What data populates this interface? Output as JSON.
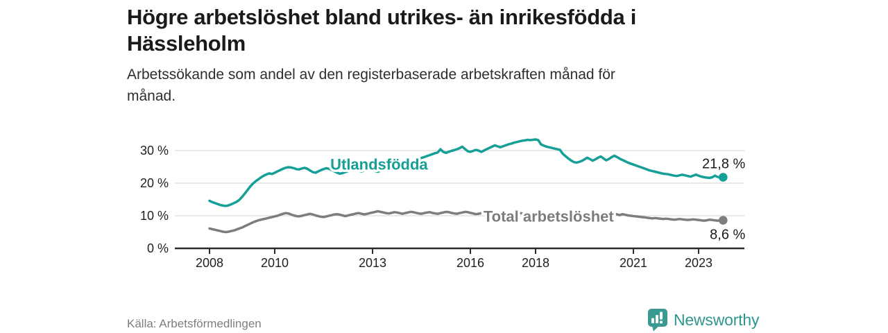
{
  "header": {
    "title_line1": "Högre arbetslöshet bland utrikes- än inrikesfödda i",
    "title_line2": "Hässleholm",
    "subtitle_line1": "Arbetssökande som andel av den registerbaserade arbetskraften månad för",
    "subtitle_line2": "månad."
  },
  "footer": {
    "source": "Källa: Arbetsförmedlingen",
    "brand": "Newsworthy"
  },
  "colors": {
    "accent_teal": "#169f97",
    "series_gray": "#7d7d7d",
    "brand_teal": "#2d968e",
    "gridline": "#dcdcdc",
    "axis": "#2b2b2b",
    "text_dark": "#1a1a1a"
  },
  "chart_data": {
    "type": "line",
    "title": "Högre arbetslöshet bland utrikes- än inrikesfödda i Hässleholm",
    "subtitle": "Arbetssökande som andel av den registerbaserade arbetskraften månad för månad.",
    "source": "Källa: Arbetsförmedlingen",
    "x_start_year": 2008,
    "x_step_months": 1,
    "x_tick_years": [
      2008,
      2010,
      2013,
      2016,
      2018,
      2021,
      2023
    ],
    "x_tick_labels": [
      "2008",
      "2010",
      "2013",
      "2016",
      "2018",
      "2021",
      "2023"
    ],
    "y_ticks": [
      0,
      10,
      20,
      30
    ],
    "y_tick_labels": [
      "0 %",
      "10 %",
      "20 %",
      "30 %"
    ],
    "ylim": [
      0,
      36
    ],
    "xlim": [
      2006.9,
      2024.4
    ],
    "grid": "horizontal",
    "legend_position": "inline-labels",
    "series": [
      {
        "id": "utlandsfodda",
        "name": "Utlandsfödda",
        "color": "#169f97",
        "end_label": "21,8 %",
        "end_value": 21.8,
        "end_label_pos": "above",
        "label_x": 2013.2,
        "label_y": 25.8,
        "values": [
          14.6,
          14.2,
          13.9,
          13.6,
          13.3,
          13.1,
          13.0,
          13.2,
          13.5,
          13.9,
          14.3,
          14.9,
          15.8,
          16.8,
          17.9,
          19.0,
          19.9,
          20.6,
          21.2,
          21.8,
          22.3,
          22.7,
          23.0,
          22.8,
          23.2,
          23.6,
          24.0,
          24.4,
          24.7,
          24.9,
          24.8,
          24.6,
          24.3,
          24.2,
          24.5,
          24.7,
          24.4,
          23.9,
          23.4,
          23.2,
          23.6,
          24.0,
          24.3,
          24.6,
          24.4,
          24.0,
          23.6,
          23.2,
          22.9,
          23.1,
          23.4,
          23.7,
          24.0,
          24.2,
          24.0,
          23.8,
          23.6,
          23.9,
          24.1,
          24.3,
          24.0,
          23.7,
          23.5,
          23.8,
          24.1,
          24.3,
          24.6,
          24.4,
          24.7,
          25.0,
          25.3,
          25.6,
          25.9,
          26.2,
          26.5,
          26.8,
          27.1,
          27.4,
          27.7,
          28.0,
          28.3,
          28.6,
          28.9,
          29.2,
          29.4,
          30.4,
          29.6,
          29.3,
          29.6,
          29.9,
          30.1,
          30.4,
          30.7,
          31.2,
          30.5,
          29.8,
          29.6,
          29.9,
          30.2,
          30.0,
          29.6,
          30.0,
          30.4,
          30.8,
          31.2,
          31.6,
          31.3,
          31.0,
          31.3,
          31.6,
          31.9,
          32.1,
          32.4,
          32.6,
          32.8,
          33.0,
          33.1,
          33.3,
          33.2,
          33.3,
          33.4,
          33.2,
          31.9,
          31.5,
          31.2,
          31.0,
          30.8,
          30.6,
          30.4,
          30.2,
          29.0,
          28.3,
          27.6,
          27.0,
          26.5,
          26.3,
          26.5,
          26.8,
          27.3,
          27.8,
          27.4,
          26.9,
          27.3,
          27.8,
          28.2,
          27.6,
          27.0,
          27.4,
          28.0,
          28.4,
          28.0,
          27.5,
          27.1,
          26.7,
          26.3,
          26.0,
          25.7,
          25.4,
          25.1,
          24.8,
          24.5,
          24.2,
          23.9,
          23.7,
          23.5,
          23.3,
          23.1,
          22.9,
          22.8,
          22.7,
          22.5,
          22.3,
          22.2,
          22.4,
          22.6,
          22.4,
          22.2,
          22.0,
          22.3,
          22.6,
          22.3,
          22.0,
          21.8,
          21.7,
          21.6,
          21.8,
          22.3,
          21.9,
          21.7,
          21.8
        ]
      },
      {
        "id": "total",
        "name": "Total arbetslöshet",
        "color": "#7d7d7d",
        "end_label": "8,6 %",
        "end_value": 8.6,
        "end_label_pos": "below",
        "label_x": 2018.4,
        "label_y": 9.9,
        "values": [
          6.1,
          5.9,
          5.7,
          5.5,
          5.3,
          5.1,
          5.0,
          5.1,
          5.3,
          5.5,
          5.8,
          6.1,
          6.4,
          6.8,
          7.2,
          7.6,
          8.0,
          8.3,
          8.6,
          8.8,
          9.0,
          9.2,
          9.4,
          9.6,
          9.8,
          10.0,
          10.3,
          10.6,
          10.8,
          10.7,
          10.4,
          10.1,
          9.9,
          9.8,
          10.0,
          10.2,
          10.4,
          10.6,
          10.4,
          10.1,
          9.9,
          9.7,
          9.6,
          9.8,
          10.0,
          10.2,
          10.4,
          10.5,
          10.3,
          10.1,
          9.9,
          10.1,
          10.3,
          10.5,
          10.7,
          10.8,
          10.6,
          10.4,
          10.6,
          10.8,
          11.0,
          11.2,
          11.4,
          11.2,
          11.0,
          10.8,
          10.7,
          10.9,
          11.1,
          11.0,
          10.8,
          10.6,
          10.8,
          11.0,
          11.2,
          11.1,
          10.9,
          10.7,
          10.6,
          10.8,
          11.0,
          11.1,
          10.9,
          10.7,
          10.6,
          10.8,
          11.0,
          11.2,
          11.1,
          10.9,
          10.7,
          10.6,
          10.8,
          11.0,
          11.2,
          11.1,
          10.9,
          10.7,
          10.5,
          10.6,
          10.8,
          11.0,
          11.1,
          10.9,
          10.7,
          10.6,
          10.8,
          11.0,
          11.1,
          10.9,
          10.7,
          10.6,
          10.8,
          11.0,
          10.9,
          10.7,
          10.5,
          10.6,
          10.8,
          10.9,
          10.7,
          10.5,
          10.3,
          10.1,
          10.0,
          10.1,
          10.2,
          10.0,
          9.9,
          10.0,
          10.1,
          9.9,
          9.7,
          9.6,
          9.5,
          9.6,
          9.8,
          9.9,
          10.0,
          9.9,
          9.7,
          9.8,
          9.9,
          10.0,
          10.1,
          10.3,
          10.6,
          10.9,
          10.8,
          10.6,
          10.4,
          10.2,
          10.5,
          10.3,
          10.1,
          10.0,
          9.9,
          9.8,
          9.7,
          9.6,
          9.5,
          9.4,
          9.3,
          9.2,
          9.3,
          9.2,
          9.1,
          9.0,
          9.1,
          9.0,
          8.9,
          8.8,
          8.9,
          9.0,
          8.9,
          8.8,
          8.7,
          8.8,
          8.9,
          8.8,
          8.7,
          8.6,
          8.5,
          8.6,
          8.8,
          8.7,
          8.6,
          8.5,
          8.6,
          8.6
        ]
      }
    ]
  }
}
